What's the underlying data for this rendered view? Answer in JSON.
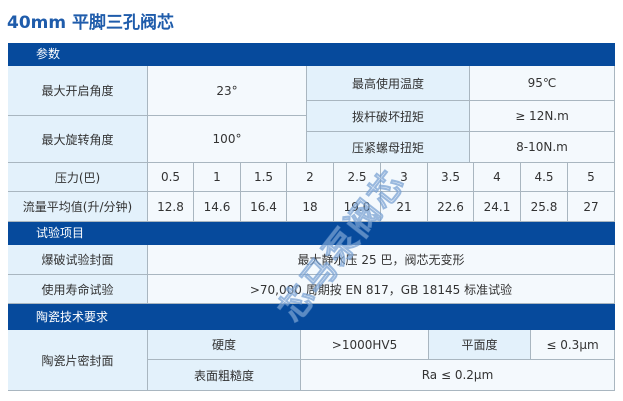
{
  "title": "40mm 平脚三孔阀芯",
  "sections": {
    "params": "参数",
    "tests": "试验项目",
    "ceramic": "陶瓷技术要求"
  },
  "params": {
    "max_open_angle_label": "最大开启角度",
    "max_open_angle": "23°",
    "max_rotate_angle_label": "最大旋转角度",
    "max_rotate_angle": "100°",
    "max_temp_label": "最高使用温度",
    "max_temp": "95℃",
    "lever_torque_label": "拨杆破坏扭矩",
    "lever_torque": "≥ 12N.m",
    "nut_torque_label": "压紧螺母扭矩",
    "nut_torque": "8-10N.m",
    "pressure_label": "压力(巴)",
    "pressure": [
      "0.5",
      "1",
      "1.5",
      "2",
      "2.5",
      "3",
      "3.5",
      "4",
      "4.5",
      "5"
    ],
    "flow_label": "流量平均值(升/分钟)",
    "flow": [
      "12.8",
      "14.6",
      "16.4",
      "18",
      "19.0",
      "21",
      "22.6",
      "24.1",
      "25.8",
      "27"
    ]
  },
  "tests": {
    "burst_label": "爆破试验封面",
    "burst": "最大静水压 25 巴，阀芯无变形",
    "life_label": "使用寿命试验",
    "life": ">70,000 周期按 EN 817，GB 18145 标准试验"
  },
  "ceramic": {
    "seal_label": "陶瓷片密封面",
    "hardness_label": "硬度",
    "hardness": ">1000HV5",
    "flatness_label": "平面度",
    "flatness": "≤ 0.3μm",
    "roughness_label": "表面粗糙度",
    "roughness": "Ra ≤ 0.2μm"
  },
  "watermark": "芯马泵阀芯"
}
